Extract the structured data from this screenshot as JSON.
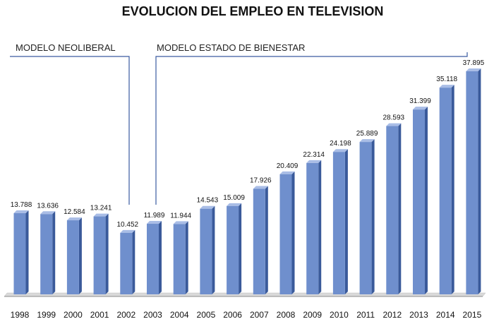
{
  "chart_data": {
    "type": "bar",
    "title": "EVOLUCION DEL EMPLEO EN TELEVISION",
    "categories": [
      "1998",
      "1999",
      "2000",
      "2001",
      "2002",
      "2003",
      "2004",
      "2005",
      "2006",
      "2007",
      "2008",
      "2009",
      "2010",
      "2011",
      "2012",
      "2013",
      "2014",
      "2015"
    ],
    "values": [
      13788,
      13636,
      12584,
      13241,
      10452,
      11989,
      11944,
      14543,
      15009,
      17926,
      20409,
      22314,
      24198,
      25889,
      28593,
      31399,
      35118,
      37895
    ],
    "value_labels": [
      "13.788",
      "13.636",
      "12.584",
      "13.241",
      "10.452",
      "11.989",
      "11.944",
      "14.543",
      "15.009",
      "17.926",
      "20.409",
      "22.314",
      "24.198",
      "25.889",
      "28.593",
      "31.399",
      "35.118",
      "37.895"
    ],
    "ylim": [
      0,
      40000
    ],
    "grid": false,
    "bar_color": "#6f8fcd",
    "bar_dark_color": "#3a5a9a",
    "annotations": [
      {
        "text": "MODELO NEOLIBERAL",
        "from": "1998",
        "to": "2002"
      },
      {
        "text": "MODELO  ESTADO DE BIENESTAR",
        "from": "2003",
        "to": "2015"
      }
    ]
  }
}
